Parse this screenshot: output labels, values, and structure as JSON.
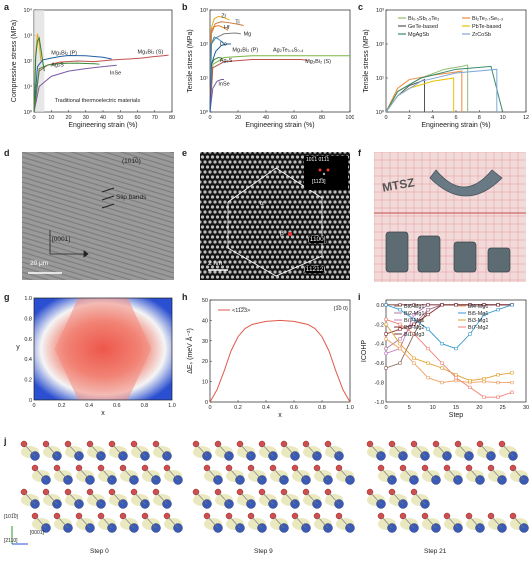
{
  "panels": {
    "a": {
      "label": "a"
    },
    "b": {
      "label": "b"
    },
    "c": {
      "label": "c"
    },
    "d": {
      "label": "d"
    },
    "e": {
      "label": "e"
    },
    "f": {
      "label": "f"
    },
    "g": {
      "label": "g"
    },
    "h": {
      "label": "h"
    },
    "i": {
      "label": "i"
    },
    "j": {
      "label": "j"
    }
  },
  "chart_data": [
    {
      "id": "a",
      "type": "line",
      "xlabel": "Engineering strain (%)",
      "ylabel": "Compressive stress (MPa)",
      "xlim": [
        0,
        80
      ],
      "ylim": [
        1,
        10000
      ],
      "yscale": "log",
      "xticks": [
        "0",
        "10",
        "20",
        "30",
        "40",
        "50",
        "60",
        "70",
        "80"
      ],
      "yticks": [
        "10⁰",
        "10¹",
        "10²",
        "10³",
        "10⁴"
      ],
      "annotation": "Traditional thermoelectric materials",
      "series": [
        {
          "name": "Mg₃Bi₂ (P)",
          "color": "#1f5fa8",
          "x": [
            0,
            2,
            5,
            10,
            15,
            20,
            30,
            35,
            40,
            45
          ],
          "y": [
            1,
            60,
            110,
            130,
            150,
            165,
            160,
            150,
            140,
            120
          ]
        },
        {
          "name": "Mg₃Bi₂ (S)",
          "color": "#c0504d",
          "x": [
            0,
            3,
            8,
            15,
            25,
            35,
            45,
            55,
            62,
            70,
            75,
            78
          ],
          "y": [
            1,
            40,
            70,
            90,
            100,
            95,
            110,
            120,
            130,
            150,
            160,
            170
          ]
        },
        {
          "name": "Ag₂S",
          "color": "#3a8a3a",
          "x": [
            0,
            3,
            8,
            15,
            20,
            25,
            30,
            35,
            38
          ],
          "y": [
            1,
            50,
            70,
            80,
            82,
            83,
            80,
            78,
            75
          ]
        },
        {
          "name": "InSe",
          "color": "#7a5aa6",
          "x": [
            0,
            3,
            10,
            20,
            30,
            40,
            45,
            48
          ],
          "y": [
            1,
            10,
            25,
            40,
            50,
            60,
            65,
            68
          ]
        },
        {
          "name": "",
          "color": "#e6a817",
          "x": [
            0,
            1,
            2,
            3,
            4
          ],
          "y": [
            1,
            200,
            1200,
            500,
            100
          ]
        },
        {
          "name": "",
          "color": "#2e7d32",
          "x": [
            0,
            1,
            2,
            3,
            4,
            5,
            6
          ],
          "y": [
            1,
            150,
            600,
            800,
            300,
            100,
            40
          ]
        }
      ]
    },
    {
      "id": "b",
      "type": "line",
      "xlabel": "Engineering strain (%)",
      "ylabel": "Tensile stress (MPa)",
      "xlim": [
        0,
        100
      ],
      "ylim": [
        1,
        1000
      ],
      "yscale": "log",
      "xticks": [
        "0",
        "20",
        "40",
        "60",
        "80",
        "100"
      ],
      "yticks": [
        "10⁰",
        "10¹",
        "10²",
        "10³"
      ],
      "series": [
        {
          "name": "Zr",
          "color": "#e6a817",
          "x": [
            0,
            1,
            3,
            6,
            10,
            14
          ],
          "y": [
            1,
            300,
            550,
            650,
            600,
            500
          ]
        },
        {
          "name": "Ti",
          "color": "#c97a3a",
          "x": [
            0,
            1,
            4,
            8,
            14,
            20,
            24
          ],
          "y": [
            1,
            250,
            400,
            450,
            420,
            380,
            350
          ]
        },
        {
          "name": "Hf",
          "color": "#e6812b",
          "x": [
            0,
            1,
            3,
            6,
            10,
            13
          ],
          "y": [
            1,
            200,
            320,
            350,
            300,
            250
          ]
        },
        {
          "name": "Mg",
          "color": "#7f7f7f",
          "x": [
            0,
            1,
            4,
            10,
            18,
            22
          ],
          "y": [
            1,
            100,
            150,
            200,
            210,
            200
          ]
        },
        {
          "name": "Co",
          "color": "#2d8fc9",
          "x": [
            0,
            1,
            3,
            6,
            8,
            10
          ],
          "y": [
            1,
            100,
            160,
            140,
            120,
            100
          ]
        },
        {
          "name": "Ag₂S",
          "color": "#3a8a3a",
          "x": [
            0,
            1,
            3,
            6,
            9
          ],
          "y": [
            1,
            25,
            35,
            40,
            38
          ]
        },
        {
          "name": "Ag₂Te₀.₆S₀.₄",
          "color": "#7cb342",
          "x": [
            0,
            2,
            10,
            30,
            50,
            70,
            85,
            100
          ],
          "y": [
            1,
            25,
            40,
            45,
            45,
            45,
            45,
            45
          ]
        },
        {
          "name": "Mg₃Bi₂ (S)",
          "color": "#c0504d",
          "x": [
            0,
            2,
            10,
            30,
            50,
            65,
            70
          ],
          "y": [
            1,
            20,
            30,
            35,
            35,
            35,
            33
          ]
        },
        {
          "name": "InSe",
          "color": "#7a5aa6",
          "x": [
            0,
            2,
            5,
            8,
            10
          ],
          "y": [
            1,
            5,
            8,
            9,
            9
          ]
        },
        {
          "name": "Mg₃Bi₂ (P)",
          "color": "#1f5fa8",
          "x": [
            0,
            1,
            4,
            8,
            12,
            15
          ],
          "y": [
            1,
            25,
            60,
            90,
            100,
            100
          ]
        }
      ]
    },
    {
      "id": "c",
      "type": "line",
      "xlabel": "Engineering strain (%)",
      "ylabel": "Tensile stress (MPa)",
      "xlim": [
        0,
        12
      ],
      "ylim": [
        1,
        1000
      ],
      "yscale": "log",
      "xticks": [
        "0",
        "2",
        "4",
        "6",
        "8",
        "10",
        "12"
      ],
      "yticks": [
        "10⁰",
        "10¹",
        "10²",
        "10³"
      ],
      "legend": "top",
      "series": [
        {
          "name": "Bi₀.₅Sb₁.₅Te₃",
          "color": "#8fbf6f",
          "x": [
            0,
            1,
            3,
            5,
            6.5,
            7,
            7
          ],
          "y": [
            1,
            4,
            10,
            18,
            22,
            24,
            1
          ]
        },
        {
          "name": "Bi₂Te₂.₇Se₀.₃",
          "color": "#f08a3c",
          "x": [
            0,
            1,
            2,
            4,
            6,
            6.5,
            6.5
          ],
          "y": [
            1,
            5,
            9,
            12,
            15,
            16,
            1
          ]
        },
        {
          "name": "GeTe-based",
          "color": "#555555",
          "x": [
            0,
            1,
            2,
            3,
            3.3,
            3.3
          ],
          "y": [
            1,
            3,
            6,
            8,
            9,
            1
          ]
        },
        {
          "name": "PbTe-based",
          "color": "#e6c200",
          "x": [
            0,
            1,
            2,
            4,
            5.8,
            5.8
          ],
          "y": [
            1,
            3,
            5,
            8,
            10,
            1
          ]
        },
        {
          "name": "MgAgSb",
          "color": "#3a8a6a",
          "x": [
            0,
            1,
            3,
            6,
            9,
            10
          ],
          "y": [
            1,
            4,
            10,
            18,
            22,
            1
          ]
        },
        {
          "name": "ZrCoSb",
          "color": "#7fa7d6",
          "x": [
            0,
            1,
            3,
            6,
            9.5,
            9.5
          ],
          "y": [
            1,
            3,
            8,
            14,
            18,
            1
          ]
        }
      ]
    },
    {
      "id": "g",
      "type": "heatmap",
      "xlabel": "x",
      "ylabel": "y",
      "xlim": [
        0,
        1
      ],
      "ylim": [
        0,
        1
      ],
      "xticks": [
        "0",
        "0.2",
        "0.4",
        "0.6",
        "0.8",
        "1.0"
      ],
      "yticks": [
        "0",
        "0.2",
        "0.4",
        "0.6",
        "0.8",
        "1.0"
      ]
    },
    {
      "id": "h",
      "type": "line",
      "xlabel": "x",
      "ylabel": "ΔEₛ (meV Å⁻²)",
      "xlim": [
        0,
        1
      ],
      "ylim": [
        0,
        50
      ],
      "xticks": [
        "0",
        "0.2",
        "0.4",
        "0.6",
        "0.8",
        "1.0"
      ],
      "yticks": [
        "0",
        "10",
        "20",
        "30",
        "40",
        "50"
      ],
      "legend_direction": "<11̅2̅3>",
      "plane": "{1̅0 0}",
      "series": [
        {
          "name": "",
          "color": "#e05a4a",
          "x": [
            0,
            0.05,
            0.1,
            0.15,
            0.2,
            0.25,
            0.3,
            0.4,
            0.5,
            0.6,
            0.7,
            0.75,
            0.8,
            0.85,
            0.9,
            0.95,
            1.0
          ],
          "y": [
            0,
            6,
            15,
            25,
            32,
            36,
            38,
            39.5,
            40,
            39.5,
            38,
            36,
            32,
            25,
            15,
            6,
            0
          ]
        }
      ]
    },
    {
      "id": "i",
      "type": "line",
      "xlabel": "Step",
      "ylabel": "ICOHP",
      "xlim": [
        0,
        30
      ],
      "ylim": [
        -1.0,
        0.05
      ],
      "xticks": [
        "0",
        "5",
        "10",
        "15",
        "20",
        "25",
        "30"
      ],
      "yticks": [
        "0.0",
        "-0.2",
        "-0.4",
        "-0.6",
        "-0.8",
        "-1.0"
      ],
      "series": [
        {
          "name": "Bi6-Mg1",
          "color": "#8c6a5a",
          "x": [
            0,
            3,
            6,
            9,
            12,
            15,
            18,
            21,
            24,
            27
          ],
          "y": [
            -0.65,
            -0.6,
            -0.3,
            -0.05,
            0,
            0,
            0,
            0,
            0,
            0
          ]
        },
        {
          "name": "Bi2-Mg1",
          "color": "#b07aa1",
          "x": [
            0,
            3,
            6,
            9,
            12,
            15,
            18,
            21,
            24,
            27
          ],
          "y": [
            -0.45,
            -0.35,
            -0.2,
            -0.05,
            0,
            0,
            0,
            0,
            0,
            0
          ]
        },
        {
          "name": "Bi7-Mg1",
          "color": "#c080c0",
          "x": [
            0,
            3,
            6,
            9,
            12,
            15,
            18,
            21,
            24,
            27
          ],
          "y": [
            -0.5,
            -0.45,
            -0.1,
            0,
            0,
            0,
            0,
            0,
            0,
            0
          ]
        },
        {
          "name": "Bi3-Mg2",
          "color": "#8a2f2f",
          "x": [
            0,
            3,
            6,
            9,
            12,
            15,
            18,
            21,
            24,
            27
          ],
          "y": [
            -0.3,
            -0.25,
            -0.2,
            -0.1,
            0,
            0,
            0,
            0,
            0,
            0
          ]
        },
        {
          "name": "Bi1-Mg3",
          "color": "#7a3a3a",
          "x": [
            0,
            3,
            6,
            9,
            12,
            15,
            18,
            21,
            24,
            27
          ],
          "y": [
            0,
            0,
            0,
            0,
            0,
            0,
            0,
            0,
            0,
            0
          ]
        },
        {
          "name": "Bi4-Mg1",
          "color": "#f0a060",
          "x": [
            0,
            3,
            6,
            9,
            12,
            15,
            18,
            21,
            24,
            27
          ],
          "y": [
            -0.35,
            -0.45,
            -0.6,
            -0.75,
            -0.8,
            -0.78,
            -0.8,
            -0.79,
            -0.8,
            -0.8
          ]
        },
        {
          "name": "Bi5-Mg1",
          "color": "#3a9ad0",
          "x": [
            0,
            3,
            6,
            9,
            12,
            15,
            18,
            21,
            24,
            27
          ],
          "y": [
            0,
            -0.05,
            -0.15,
            -0.25,
            -0.4,
            -0.45,
            -0.3,
            -0.1,
            -0.05,
            0
          ]
        },
        {
          "name": "Bi3-Mg1",
          "color": "#e0a030",
          "x": [
            0,
            3,
            6,
            9,
            12,
            15,
            18,
            21,
            24,
            27
          ],
          "y": [
            -0.2,
            -0.4,
            -0.55,
            -0.6,
            -0.65,
            -0.72,
            -0.78,
            -0.76,
            -0.72,
            -0.7
          ]
        },
        {
          "name": "Bi7-Mg2",
          "color": "#f08070",
          "x": [
            0,
            3,
            6,
            9,
            12,
            15,
            18,
            21,
            24,
            27
          ],
          "y": [
            -0.15,
            -0.2,
            -0.3,
            -0.45,
            -0.6,
            -0.75,
            -0.85,
            -0.95,
            -0.95,
            -0.9
          ]
        }
      ]
    }
  ],
  "panel_d": {
    "direction": "(101̅0)",
    "slip": "Slip bands",
    "axis": "[0001]",
    "scale": "20 μm"
  },
  "panel_e": {
    "fft": "101̅1  011̅1",
    "zone": "[112̅3]",
    "dir1": "[11̅00]",
    "dir2": "[112̅12]",
    "scale": "2 nm",
    "label_a": "α",
    "label_b": "β"
  },
  "panel_f": {
    "sample_text": "MTSZ"
  },
  "panel_j": {
    "axes": [
      "[101̅0]",
      "[0001]",
      "[2110]"
    ],
    "steps": [
      "Step 0",
      "Step 9",
      "Step 21"
    ]
  }
}
